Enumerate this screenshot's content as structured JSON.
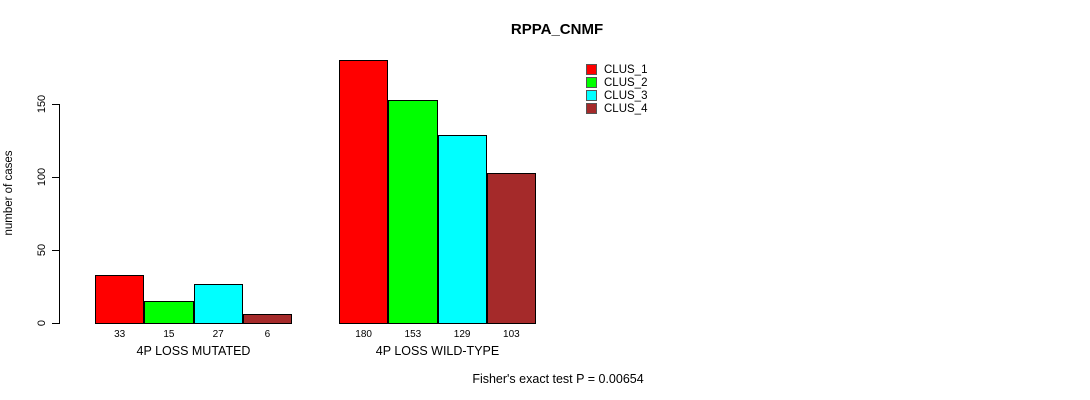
{
  "chart_data": {
    "type": "bar",
    "title": "RPPA_CNMF",
    "ylabel": "number of cases",
    "xlabel": "",
    "categories": [
      "4P LOSS MUTATED",
      "4P LOSS WILD-TYPE"
    ],
    "series": [
      {
        "name": "CLUS_1",
        "color": "#FF0000",
        "values": [
          33,
          180
        ]
      },
      {
        "name": "CLUS_2",
        "color": "#00FF00",
        "values": [
          15,
          153
        ]
      },
      {
        "name": "CLUS_3",
        "color": "#00FFFF",
        "values": [
          27,
          129
        ]
      },
      {
        "name": "CLUS_4",
        "color": "#A52A2A",
        "values": [
          6,
          103
        ]
      }
    ],
    "yticks": [
      0,
      50,
      100,
      150
    ],
    "ylim": [
      0,
      150
    ],
    "bar_value_labels": true,
    "legend_position": "top-right",
    "grid": false,
    "annotation": "Fisher's exact test P = 0.00654"
  }
}
